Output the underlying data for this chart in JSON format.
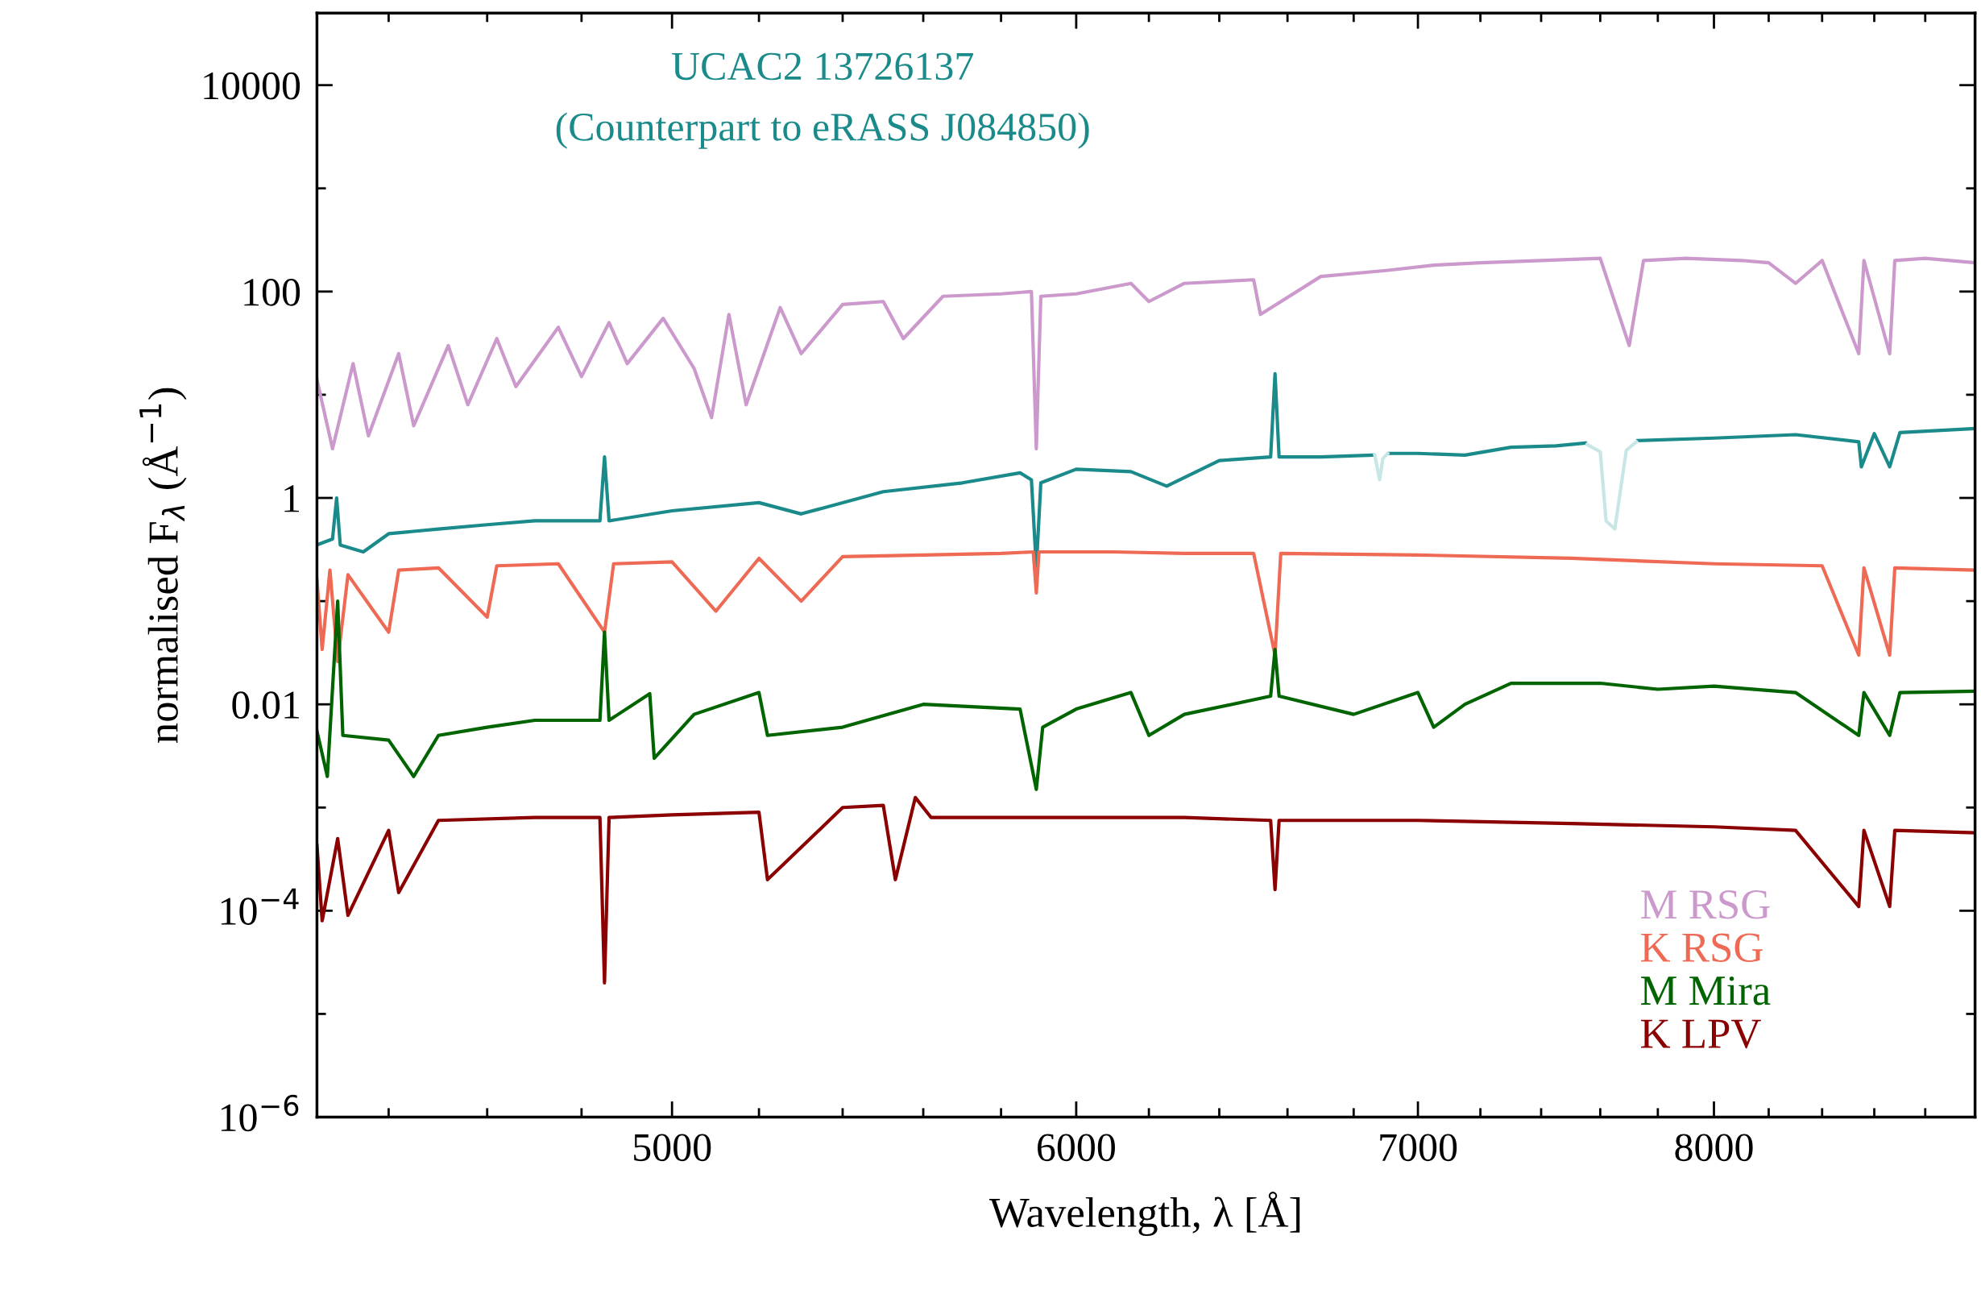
{
  "chart_data": {
    "type": "line",
    "title": "UCAC2 13726137",
    "subtitle": "(Counterpart to eRASS J084850)",
    "xlabel": "Wavelength, λ [Å]",
    "ylabel": "normalised F$_{λ}$ (Å$^{−1}$)",
    "log": "xy",
    "xlim": [
      4260,
      9000
    ],
    "ylim": [
      1e-06,
      50000
    ],
    "xticks": [
      {
        "value": 4400,
        "label": null
      },
      {
        "value": 4600,
        "label": null
      },
      {
        "value": 4800,
        "label": null
      },
      5000,
      {
        "value": 5200,
        "label": null
      },
      {
        "value": 5400,
        "label": null
      },
      {
        "value": 5600,
        "label": null
      },
      {
        "value": 5800,
        "label": null
      },
      6000,
      {
        "value": 6200,
        "label": null
      },
      {
        "value": 6400,
        "label": null
      },
      {
        "value": 6600,
        "label": null
      },
      {
        "value": 6800,
        "label": null
      },
      7000,
      {
        "value": 7200,
        "label": null
      },
      {
        "value": 7400,
        "label": null
      },
      {
        "value": 7600,
        "label": null
      },
      {
        "value": 7800,
        "label": null
      },
      8000,
      {
        "value": 8200,
        "label": null
      },
      {
        "value": 8400,
        "label": null
      },
      {
        "value": 8600,
        "label": null
      },
      {
        "value": 8800,
        "label": null
      }
    ],
    "yticks": [
      {
        "value": 1e-06,
        "label": "10$^{−6}$"
      },
      {
        "value": 1e-05,
        "label": null
      },
      {
        "value": 0.0001,
        "label": "10$^{−4}$"
      },
      {
        "value": 0.001,
        "label": null
      },
      0.01,
      {
        "value": 0.1,
        "label": null
      },
      1,
      {
        "value": 10,
        "label": null
      },
      100,
      {
        "value": 1000,
        "label": null
      },
      10000
    ],
    "grid": false,
    "legend": "bottom right",
    "marker": "none",
    "line_style": "solid",
    "series": [
      {
        "name": "M RSG",
        "color": "#cc99cc",
        "x": [
          4260,
          4290,
          4330,
          4360,
          4420,
          4450,
          4520,
          4560,
          4620,
          4660,
          4750,
          4800,
          4860,
          4900,
          4980,
          5050,
          5090,
          5130,
          5170,
          5250,
          5300,
          5400,
          5500,
          5550,
          5650,
          5800,
          5880,
          5893,
          5905,
          6000,
          6150,
          6200,
          6300,
          6500,
          6520,
          6700,
          6900,
          7050,
          7200,
          7400,
          7600,
          7700,
          7750,
          7900,
          8100,
          8200,
          8300,
          8400,
          8540,
          8560,
          8660,
          8680,
          8800,
          9000
        ],
        "values": [
          14,
          3,
          20,
          4,
          25,
          5,
          30,
          8,
          35,
          12,
          45,
          15,
          50,
          20,
          55,
          18,
          6,
          60,
          8,
          70,
          25,
          75,
          80,
          35,
          90,
          95,
          100,
          3,
          90,
          95,
          120,
          80,
          120,
          130,
          60,
          140,
          160,
          180,
          190,
          200,
          210,
          30,
          200,
          210,
          200,
          190,
          120,
          200,
          25,
          200,
          25,
          200,
          210,
          190
        ]
      },
      {
        "color": "#1a8a8a",
        "x": [
          4260,
          4290,
          4298,
          4305,
          4350,
          4400,
          4500,
          4600,
          4700,
          4840,
          4850,
          4860,
          5000,
          5200,
          5300,
          5500,
          5700,
          5850,
          5880,
          5893,
          5905,
          6000,
          6150,
          6250,
          6400,
          6550,
          6563,
          6575,
          6700,
          6860,
          6870,
          6900,
          6910,
          7000,
          7150,
          7300,
          7450,
          7550,
          7560,
          7720,
          7730,
          8000,
          8300,
          8540,
          8550,
          8600,
          8660,
          8700,
          9000
        ],
        "values": [
          0.35,
          0.4,
          1.0,
          0.35,
          0.3,
          0.45,
          0.5,
          0.55,
          0.6,
          0.6,
          2.5,
          0.6,
          0.75,
          0.9,
          0.7,
          1.15,
          1.4,
          1.75,
          1.5,
          0.21,
          1.4,
          1.9,
          1.8,
          1.3,
          2.3,
          2.5,
          16,
          2.5,
          2.5,
          2.6,
          null,
          null,
          2.7,
          2.7,
          2.6,
          3.1,
          3.2,
          3.4,
          null,
          null,
          3.6,
          3.8,
          4.1,
          3.5,
          2.0,
          4.2,
          2.0,
          4.3,
          4.7
        ]
      },
      {
        "color": "#c8e6e6",
        "x": [
          6865,
          6880,
          6890,
          6905,
          7000,
          7555,
          7600,
          7620,
          7650,
          7690,
          7725
        ],
        "values": [
          2.6,
          1.5,
          2.4,
          2.7,
          null,
          3.3,
          2.8,
          0.6,
          0.5,
          2.9,
          3.5
        ]
      },
      {
        "name": "K RSG",
        "color": "#ee6a55",
        "x": [
          4260,
          4270,
          4285,
          4300,
          4320,
          4400,
          4420,
          4500,
          4600,
          4620,
          4750,
          4850,
          4870,
          5000,
          5100,
          5200,
          5300,
          5400,
          5600,
          5800,
          5885,
          5893,
          5900,
          6100,
          6300,
          6500,
          6563,
          6580,
          7000,
          7500,
          8000,
          8400,
          8540,
          8560,
          8660,
          8680,
          9000
        ],
        "values": [
          0.16,
          0.034,
          0.2,
          0.026,
          0.18,
          0.05,
          0.2,
          0.21,
          0.07,
          0.22,
          0.23,
          0.05,
          0.23,
          0.24,
          0.08,
          0.26,
          0.1,
          0.27,
          0.28,
          0.29,
          0.3,
          0.12,
          0.3,
          0.3,
          0.29,
          0.29,
          0.03,
          0.29,
          0.28,
          0.26,
          0.23,
          0.22,
          0.03,
          0.21,
          0.03,
          0.21,
          0.2
        ]
      },
      {
        "name": "M Mira",
        "color": "#006400",
        "x": [
          4260,
          4280,
          4300,
          4310,
          4400,
          4450,
          4500,
          4600,
          4700,
          4840,
          4850,
          4860,
          4950,
          4960,
          5050,
          5200,
          5220,
          5400,
          5600,
          5850,
          5893,
          5910,
          6000,
          6150,
          6200,
          6300,
          6550,
          6563,
          6575,
          6800,
          7000,
          7050,
          7150,
          7300,
          7600,
          7800,
          8000,
          8300,
          8540,
          8560,
          8660,
          8700,
          9000
        ],
        "values": [
          0.0055,
          0.002,
          0.1,
          0.005,
          0.0045,
          0.002,
          0.005,
          0.006,
          0.007,
          0.007,
          0.05,
          0.007,
          0.0127,
          0.003,
          0.008,
          0.013,
          0.005,
          0.006,
          0.01,
          0.009,
          0.0015,
          0.006,
          0.009,
          0.013,
          0.005,
          0.008,
          0.012,
          0.034,
          0.012,
          0.008,
          0.013,
          0.006,
          0.01,
          0.016,
          0.016,
          0.014,
          0.015,
          0.013,
          0.005,
          0.013,
          0.005,
          0.013,
          0.0134
        ]
      },
      {
        "name": "K LPV",
        "color": "#8b0000",
        "x": [
          4260,
          4270,
          4300,
          4320,
          4400,
          4420,
          4500,
          4700,
          4840,
          4850,
          4860,
          5000,
          5200,
          5220,
          5400,
          5500,
          5530,
          5580,
          5620,
          5900,
          6000,
          6300,
          6550,
          6563,
          6575,
          7000,
          7500,
          8000,
          8300,
          8540,
          8560,
          8660,
          8680,
          9000
        ],
        "values": [
          0.00043,
          8e-05,
          0.0005,
          9e-05,
          0.0006,
          0.00015,
          0.00075,
          0.0008,
          0.0008,
          2e-05,
          0.0008,
          0.00085,
          0.0009,
          0.0002,
          0.001,
          0.00105,
          0.0002,
          0.00125,
          0.0008,
          0.0008,
          0.0008,
          0.0008,
          0.00075,
          0.00016,
          0.00075,
          0.00075,
          0.0007,
          0.00065,
          0.0006,
          0.00011,
          0.0006,
          0.00011,
          0.0006,
          0.00057
        ]
      }
    ]
  }
}
